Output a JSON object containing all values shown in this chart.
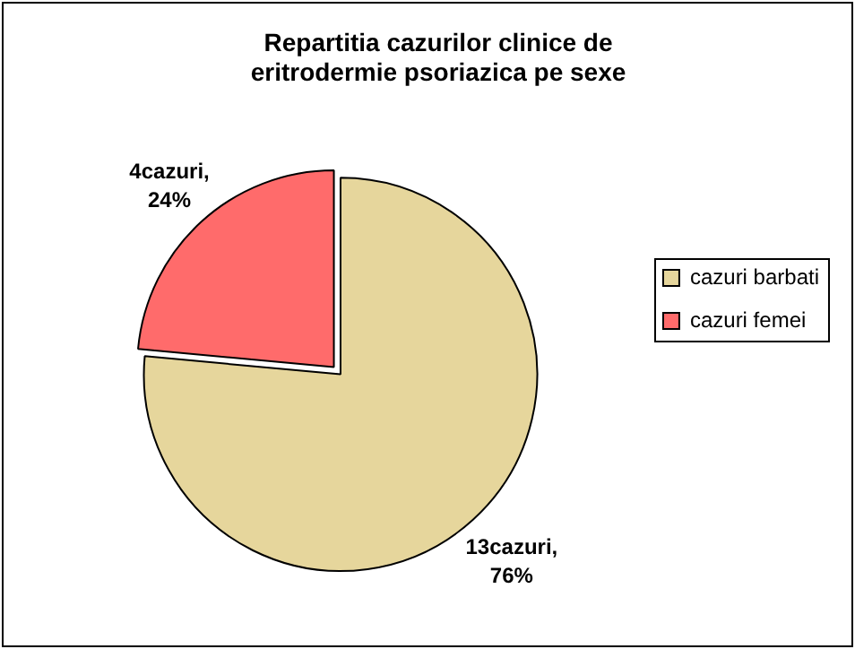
{
  "chart_data": {
    "type": "pie",
    "title": "Repartitia cazurilor clinice de eritrodermie psoriazica pe sexe",
    "categories": [
      "cazuri barbati",
      "cazuri femei"
    ],
    "values": [
      13,
      4
    ],
    "colors": [
      "#e6d69c",
      "#ff6b6b"
    ],
    "value_labels": [
      "13cazuri, 76%",
      "4cazuri, 24%"
    ],
    "legend": "right"
  }
}
